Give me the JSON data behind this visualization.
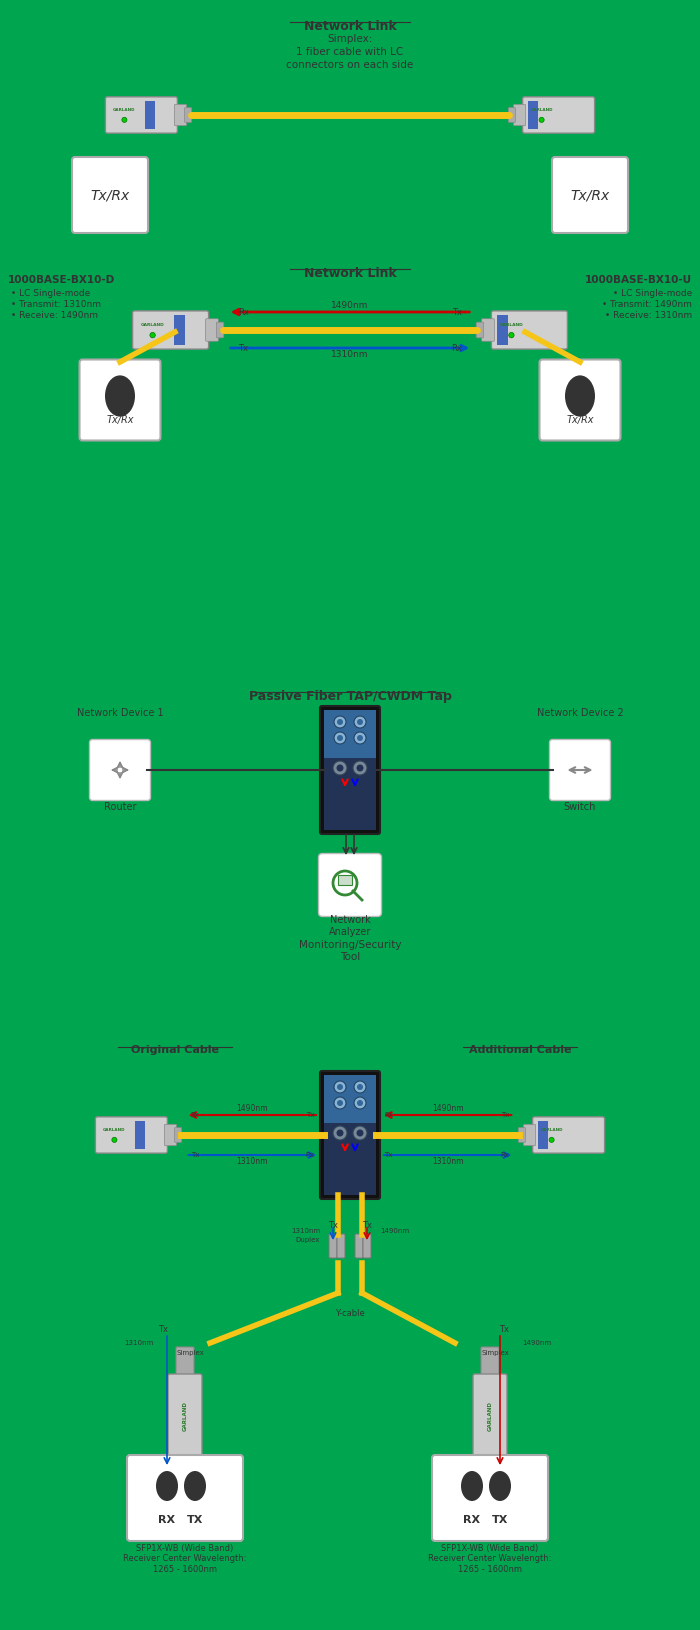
{
  "fig_width": 7.0,
  "fig_height": 16.3,
  "bg_color": "#00a550",
  "title1": "Network Link",
  "section1_lines": [
    "Simplex:",
    "1 fiber cable with LC",
    "connectors on each side"
  ],
  "section2_title": "Network Link",
  "section2_left_title": "1000BASE-BX10-D",
  "section2_left_lines": [
    " • LC Single-mode",
    " • Transmit: 1310nm",
    " • Receive: 1490nm"
  ],
  "section2_right_title": "1000BASE-BX10-U",
  "section2_right_lines": [
    " • LC Single-mode",
    " • Transmit: 1490nm",
    " • Receive: 1310nm"
  ],
  "arrow_label_1310": "1310nm",
  "arrow_label_1490": "1490nm",
  "section3_title": "Passive Fiber TAP/CWDM Tap",
  "section3_dev1": "Network Device 1",
  "section3_dev1_label": "Router",
  "section3_dev2": "Network Device 2",
  "section3_dev2_label": "Switch",
  "section3_tool_label": "Network\nAnalyzer",
  "section3_mon": "Monitoring/Security\nTool",
  "section4_left_label": "Original Cable",
  "section4_right_label": "Additional Cable",
  "section4_sfp_label": "SFP1X-WB (Wide Band)\nReceiver Center Wavelength:\n1265 - 1600nm",
  "cable_color": "#f5c518",
  "red_arrow": "#cc0000",
  "blue_arrow": "#0055cc",
  "text_color": "#333333",
  "garland_green": "#2a7a2a"
}
